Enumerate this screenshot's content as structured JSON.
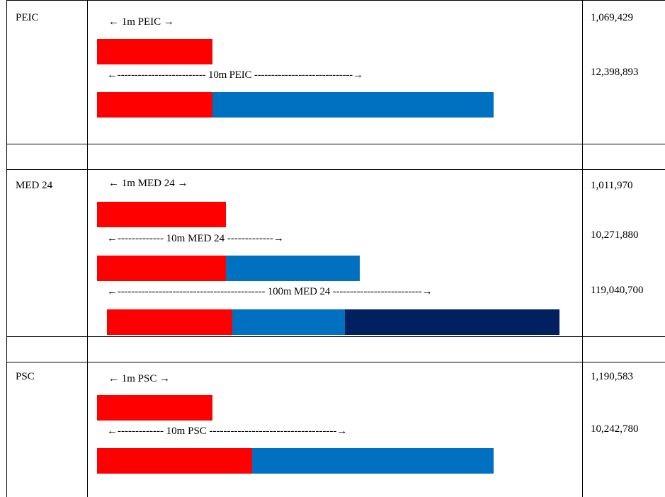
{
  "colors": {
    "red": "#ff0000",
    "blue": "#0070c0",
    "navy": "#002060"
  },
  "rows": [
    {
      "name": "PEIC",
      "arrows": [
        "← 1m PEIC →",
        "←-------------------------- 10m PEIC -----------------------------→"
      ],
      "values": [
        "1,069,429",
        "12,398,893"
      ]
    },
    {
      "name": "MED 24",
      "arrows": [
        "← 1m MED 24 →",
        "←------------- 10m MED 24 -------------→",
        "←------------------------------------------- 100m MED 24 --------------------------→"
      ],
      "values": [
        "1,011,970",
        "10,271,880",
        "119,040,700"
      ]
    },
    {
      "name": "PSC",
      "arrows": [
        "← 1m PSC →",
        "←------------- 10m PSC ------------------------------------→"
      ],
      "values": [
        "1,190,583",
        "10,242,780"
      ]
    }
  ]
}
